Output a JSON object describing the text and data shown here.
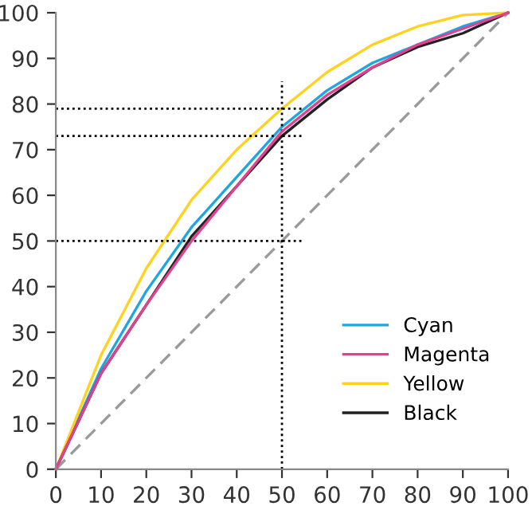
{
  "chart_data": {
    "type": "line",
    "x": [
      0,
      10,
      20,
      30,
      40,
      50,
      60,
      70,
      80,
      90,
      100
    ],
    "series": [
      {
        "name": "Cyan",
        "color": "#1ea6e0",
        "values": [
          0,
          22,
          39,
          53,
          64,
          75,
          83,
          89,
          93,
          97,
          100
        ]
      },
      {
        "name": "Magenta",
        "color": "#e4408f",
        "values": [
          0,
          21,
          36,
          50,
          62,
          74,
          82,
          88,
          93,
          96.5,
          100
        ]
      },
      {
        "name": "Yellow",
        "color": "#ffd21e",
        "values": [
          0,
          25,
          44,
          59,
          70,
          79,
          87,
          93,
          97,
          99.5,
          100
        ]
      },
      {
        "name": "Black",
        "color": "#222222",
        "values": [
          0,
          21,
          36,
          51,
          62,
          73,
          81,
          88,
          92.5,
          95.5,
          100
        ]
      },
      {
        "color": "#9a9a9a",
        "line_style": "dashed",
        "x": [
          0,
          100
        ],
        "values": [
          0,
          100
        ]
      },
      {
        "color": "#000000",
        "line_style": "dotted",
        "x": [
          50,
          50
        ],
        "values": [
          0,
          85
        ]
      },
      {
        "color": "#000000",
        "line_style": "dotted",
        "x": [
          0,
          55
        ],
        "values": [
          50,
          50
        ]
      },
      {
        "color": "#000000",
        "line_style": "dotted",
        "x": [
          0,
          55
        ],
        "values": [
          73,
          73
        ]
      },
      {
        "color": "#000000",
        "line_style": "dotted",
        "x": [
          0,
          55
        ],
        "values": [
          79,
          79
        ]
      }
    ],
    "xlim": [
      0,
      100
    ],
    "ylim": [
      0,
      100
    ],
    "xticks": [
      0,
      10,
      20,
      30,
      40,
      50,
      60,
      70,
      80,
      90,
      100
    ],
    "yticks": [
      0,
      10,
      20,
      30,
      40,
      50,
      60,
      70,
      80,
      90,
      100
    ],
    "grid": false,
    "legend": "bottom right",
    "line_style": "solid"
  }
}
